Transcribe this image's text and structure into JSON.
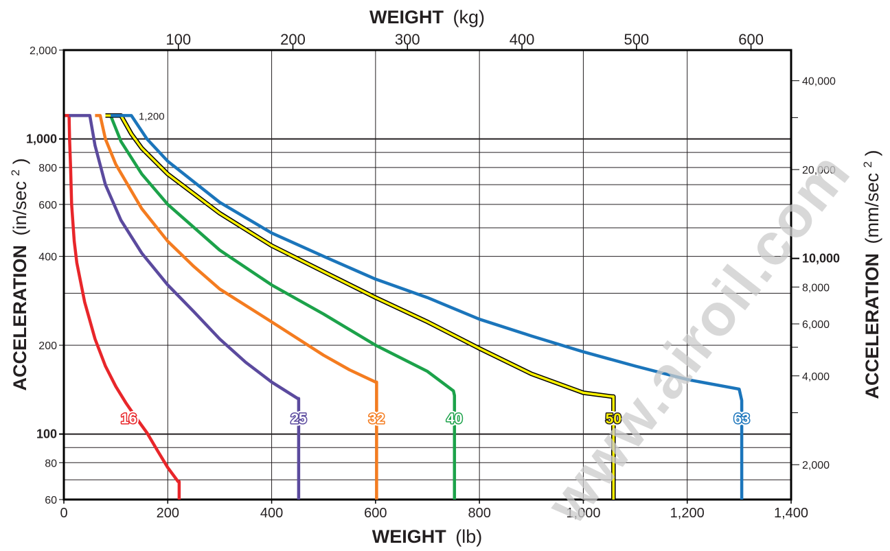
{
  "chart_data": {
    "type": "line",
    "top_axis_title": {
      "bold": "WEIGHT",
      "unit": "(kg)"
    },
    "bottom_axis_title": {
      "bold": "WEIGHT",
      "unit": "(lb)"
    },
    "left_axis_title": {
      "bold": "ACCELERATION",
      "unit": "(in/sec",
      "sup": "2",
      "close": ")"
    },
    "right_axis_title": {
      "bold": "ACCELERATION",
      "unit": "(mm/sec",
      "sup": "2",
      "close": ")"
    },
    "x_lb": {
      "range": [
        0,
        1400
      ],
      "ticks": [
        0,
        200,
        400,
        600,
        800,
        1000,
        1200,
        1400
      ],
      "tick_labels": [
        "0",
        "200",
        "400",
        "600",
        "800",
        "1,000",
        "1,200",
        "1,400"
      ]
    },
    "x_kg": {
      "ticks": [
        100,
        200,
        300,
        400,
        500,
        600
      ],
      "tick_labels": [
        "100",
        "200",
        "300",
        "400",
        "500",
        "600"
      ]
    },
    "y_in": {
      "scale": "log",
      "range": [
        60,
        2000
      ],
      "ticks": [
        60,
        80,
        100,
        200,
        400,
        600,
        800,
        1000,
        2000
      ],
      "tick_labels": [
        "60",
        "80",
        "100",
        "200",
        "400",
        "600",
        "800",
        "1,000",
        "2,000"
      ],
      "bold_ticks": [
        100,
        1000
      ],
      "gridlines": [
        60,
        70,
        80,
        90,
        100,
        200,
        300,
        400,
        500,
        600,
        700,
        800,
        900,
        1000
      ]
    },
    "y_mm": {
      "labeled": [
        2000,
        4000,
        6000,
        8000,
        10000,
        20000,
        40000
      ],
      "tick_labels": [
        "2,000",
        "4,000",
        "6,000",
        "8,000",
        "10,000",
        "20,000",
        "40,000"
      ],
      "bold_ticks": [
        10000
      ],
      "minor": [
        3000,
        5000,
        30000
      ]
    },
    "annotation": "1,200",
    "series": [
      {
        "name": "16",
        "color": "#e8262a",
        "points": [
          [
            2,
            1200
          ],
          [
            10,
            1200
          ],
          [
            11,
            1000
          ],
          [
            13,
            800
          ],
          [
            15,
            600
          ],
          [
            20,
            450
          ],
          [
            25,
            380
          ],
          [
            40,
            280
          ],
          [
            60,
            210
          ],
          [
            80,
            170
          ],
          [
            100,
            145
          ],
          [
            120,
            127
          ],
          [
            140,
            113
          ],
          [
            160,
            101
          ],
          [
            180,
            88
          ],
          [
            200,
            77
          ],
          [
            220,
            69
          ],
          [
            222,
            69
          ],
          [
            222,
            60
          ]
        ],
        "label_at": [
          125,
          113
        ]
      },
      {
        "name": "25",
        "color": "#5b4a9e",
        "points": [
          [
            10,
            1200
          ],
          [
            50,
            1200
          ],
          [
            60,
            950
          ],
          [
            80,
            700
          ],
          [
            110,
            530
          ],
          [
            150,
            410
          ],
          [
            200,
            320
          ],
          [
            250,
            260
          ],
          [
            300,
            210
          ],
          [
            350,
            175
          ],
          [
            400,
            150
          ],
          [
            450,
            132
          ],
          [
            452,
            132
          ],
          [
            452,
            60
          ]
        ],
        "label_at": [
          452,
          113
        ]
      },
      {
        "name": "32",
        "color": "#f47c20",
        "points": [
          [
            60,
            1200
          ],
          [
            70,
            1200
          ],
          [
            80,
            1000
          ],
          [
            100,
            820
          ],
          [
            150,
            580
          ],
          [
            200,
            450
          ],
          [
            250,
            370
          ],
          [
            300,
            310
          ],
          [
            400,
            240
          ],
          [
            500,
            185
          ],
          [
            550,
            165
          ],
          [
            600,
            150
          ],
          [
            602,
            150
          ],
          [
            602,
            60
          ]
        ],
        "label_at": [
          602,
          113
        ]
      },
      {
        "name": "40",
        "color": "#1ca24a",
        "points": [
          [
            80,
            1200
          ],
          [
            90,
            1200
          ],
          [
            110,
            980
          ],
          [
            150,
            760
          ],
          [
            200,
            600
          ],
          [
            300,
            420
          ],
          [
            400,
            320
          ],
          [
            500,
            255
          ],
          [
            600,
            200
          ],
          [
            700,
            163
          ],
          [
            750,
            140
          ],
          [
            752,
            135
          ],
          [
            752,
            60
          ]
        ],
        "label_at": [
          752,
          113
        ]
      },
      {
        "name": "50",
        "color": "#fff200",
        "outline": "#000000",
        "points": [
          [
            80,
            1200
          ],
          [
            110,
            1200
          ],
          [
            130,
            1040
          ],
          [
            150,
            930
          ],
          [
            200,
            760
          ],
          [
            300,
            560
          ],
          [
            400,
            435
          ],
          [
            500,
            355
          ],
          [
            600,
            290
          ],
          [
            700,
            240
          ],
          [
            800,
            195
          ],
          [
            900,
            160
          ],
          [
            1000,
            138
          ],
          [
            1055,
            134
          ],
          [
            1058,
            134
          ],
          [
            1058,
            60
          ]
        ],
        "label_at": [
          1058,
          113
        ]
      },
      {
        "name": "63",
        "color": "#1b75bb",
        "points": [
          [
            90,
            1200
          ],
          [
            130,
            1200
          ],
          [
            160,
            1000
          ],
          [
            200,
            840
          ],
          [
            300,
            610
          ],
          [
            400,
            480
          ],
          [
            500,
            400
          ],
          [
            600,
            335
          ],
          [
            700,
            290
          ],
          [
            800,
            245
          ],
          [
            900,
            215
          ],
          [
            1000,
            190
          ],
          [
            1100,
            170
          ],
          [
            1200,
            153
          ],
          [
            1300,
            142
          ],
          [
            1305,
            130
          ],
          [
            1305,
            60
          ]
        ],
        "label_at": [
          1305,
          113
        ]
      }
    ]
  },
  "watermark": "www.airoil.com"
}
